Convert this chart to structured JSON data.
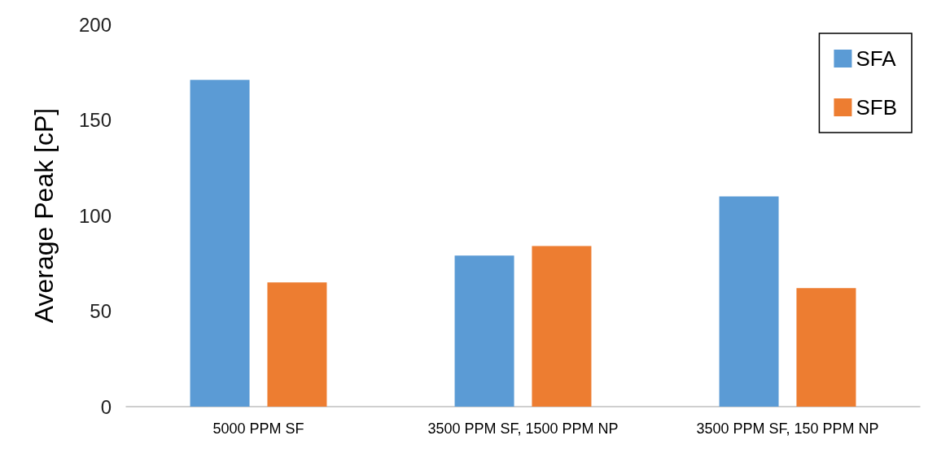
{
  "chart_data": {
    "type": "bar",
    "ylabel": "Average Peak [cP]",
    "categories": [
      "5000 PPM SF",
      "3500 PPM SF, 1500 PPM NP",
      "3500 PPM SF, 150 PPM NP"
    ],
    "series": [
      {
        "name": "SFA",
        "color": "#5b9bd5",
        "values": [
          171,
          79,
          110
        ]
      },
      {
        "name": "SFB",
        "color": "#ed7d31",
        "values": [
          65,
          84,
          62
        ]
      }
    ],
    "ylim": [
      0,
      200
    ],
    "yticks": [
      0,
      50,
      100,
      150,
      200
    ],
    "grid": false,
    "legend": "top right"
  }
}
